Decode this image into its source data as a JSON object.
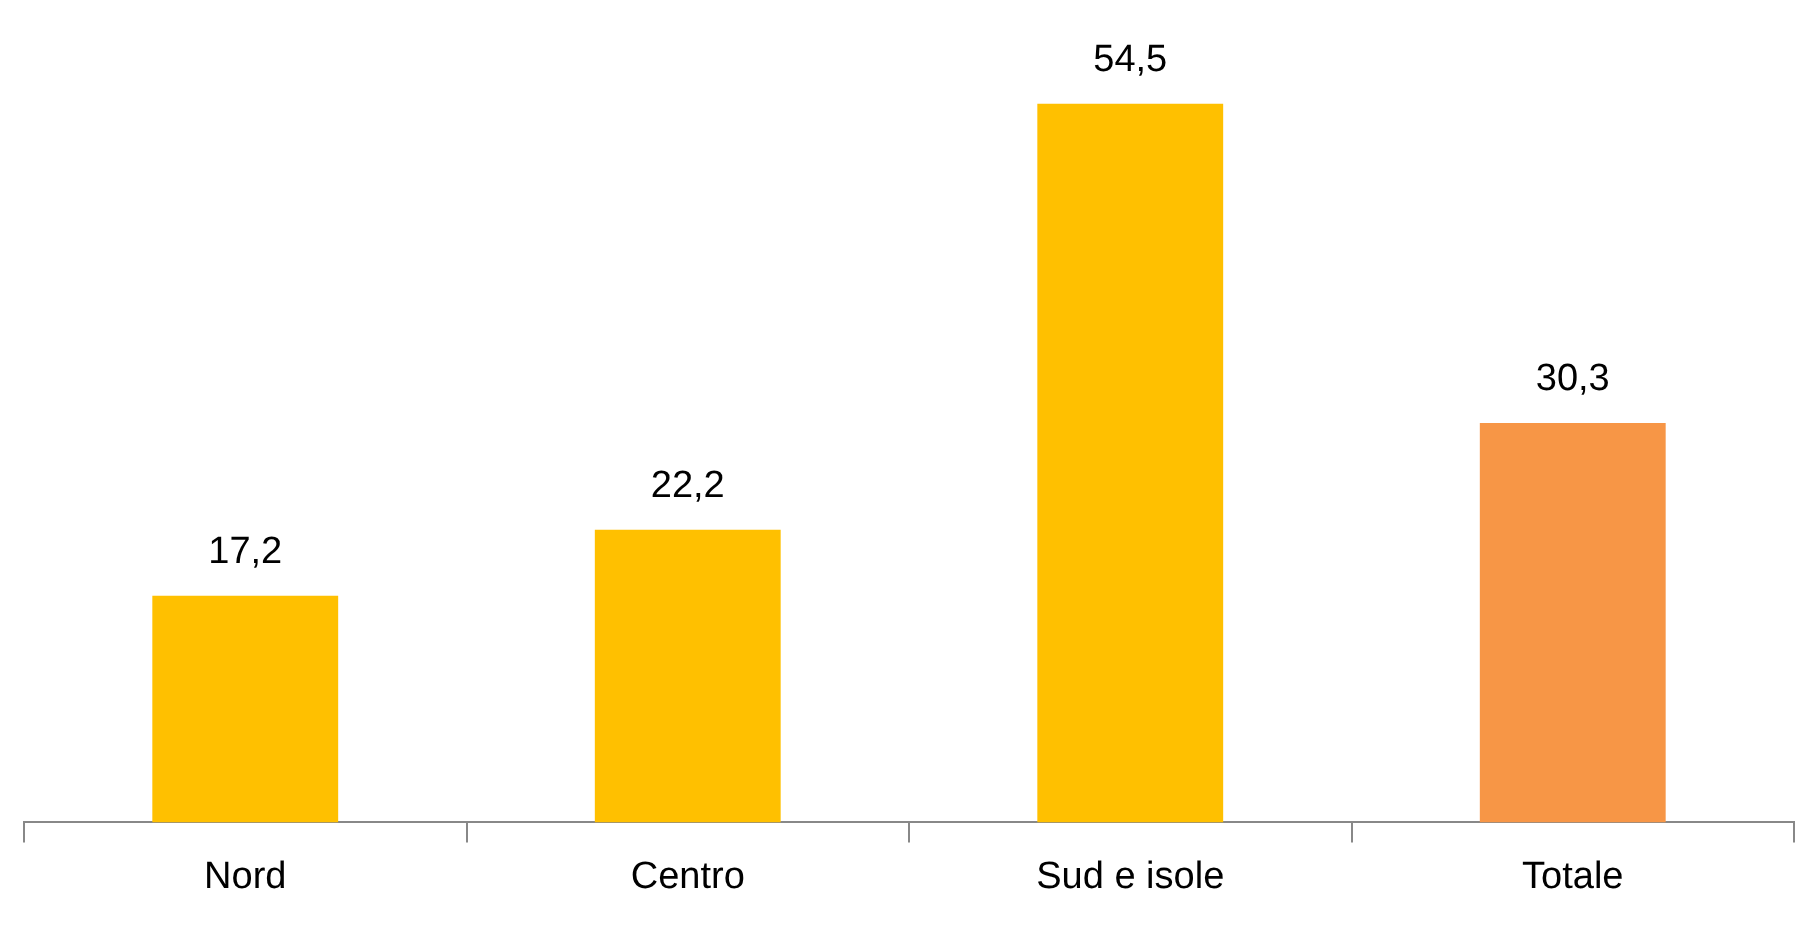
{
  "chart_data": {
    "type": "bar",
    "categories": [
      "Nord",
      "Centro",
      "Sud e isole",
      "Totale"
    ],
    "values": [
      17.2,
      22.2,
      54.5,
      30.3
    ],
    "colors": [
      "#ffc000",
      "#ffc000",
      "#ffc000",
      "#f79646"
    ],
    "value_labels": [
      "17,2",
      "22,2",
      "54,5",
      "30,3"
    ]
  }
}
